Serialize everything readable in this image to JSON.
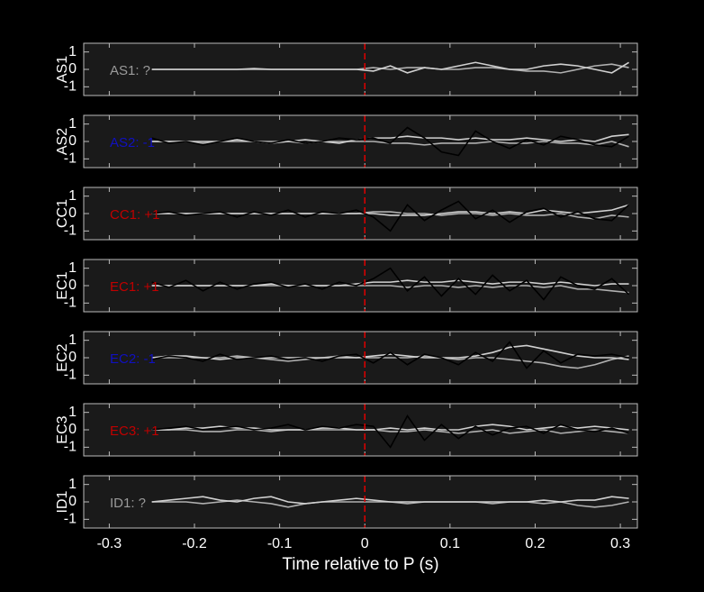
{
  "chart_data": [
    {
      "type": "line",
      "ylabel": "AS1",
      "annotation": "AS1: ?",
      "annotation_color": "#9a9a9a",
      "xlim": [
        -0.33,
        0.32
      ],
      "xticks": [
        -0.3,
        -0.2,
        -0.1,
        0,
        0.1,
        0.2,
        0.3
      ],
      "ylim": [
        -1.5,
        1.5
      ],
      "yticks": [
        -1,
        0,
        1
      ],
      "vline": 0,
      "vline_color": "#e00000",
      "x": [
        -0.25,
        -0.23,
        -0.21,
        -0.19,
        -0.17,
        -0.15,
        -0.13,
        -0.11,
        -0.09,
        -0.07,
        -0.05,
        -0.03,
        -0.01,
        0.01,
        0.03,
        0.05,
        0.07,
        0.09,
        0.11,
        0.13,
        0.15,
        0.17,
        0.19,
        0.21,
        0.23,
        0.25,
        0.27,
        0.29,
        0.31
      ],
      "series": [
        {
          "color": "#d0d0d0",
          "values": [
            0,
            0,
            0,
            0,
            0,
            0,
            0.05,
            0,
            0,
            0,
            0,
            0,
            0,
            -0.1,
            0.2,
            -0.2,
            0.1,
            0,
            0.2,
            0.4,
            0.2,
            0,
            0,
            0.2,
            0.3,
            0.2,
            0,
            -0.2,
            0.4
          ]
        },
        {
          "color": "#b0b0b0",
          "values": [
            0,
            0,
            0,
            0,
            0,
            0,
            0,
            0,
            0,
            0,
            0,
            0,
            0,
            0.1,
            0,
            0.1,
            0.1,
            0,
            0,
            0.1,
            0.1,
            0,
            -0.1,
            -0.1,
            -0.2,
            0,
            0.2,
            0.3,
            0.1
          ]
        }
      ]
    },
    {
      "type": "line",
      "ylabel": "AS2",
      "annotation": "AS2: -1",
      "annotation_color": "#1010c0",
      "xlim": [
        -0.33,
        0.32
      ],
      "xticks": [
        -0.3,
        -0.2,
        -0.1,
        0,
        0.1,
        0.2,
        0.3
      ],
      "ylim": [
        -1.5,
        1.5
      ],
      "yticks": [
        -1,
        0,
        1
      ],
      "vline": 0,
      "vline_color": "#e00000",
      "x": [
        -0.25,
        -0.23,
        -0.21,
        -0.19,
        -0.17,
        -0.15,
        -0.13,
        -0.11,
        -0.09,
        -0.07,
        -0.05,
        -0.03,
        -0.01,
        0.01,
        0.03,
        0.05,
        0.07,
        0.09,
        0.11,
        0.13,
        0.15,
        0.17,
        0.19,
        0.21,
        0.23,
        0.25,
        0.27,
        0.29,
        0.31
      ],
      "series": [
        {
          "color": "#000000",
          "values": [
            0.2,
            -0.1,
            0,
            -0.2,
            0,
            0.2,
            0,
            -0.1,
            0.1,
            -0.1,
            0,
            0.2,
            0.1,
            0.2,
            -0.1,
            0.8,
            0.2,
            -0.6,
            -0.8,
            0.6,
            0,
            -0.4,
            0.1,
            -0.2,
            0.3,
            0.1,
            -0.2,
            -0.3,
            0.3
          ]
        },
        {
          "color": "#d0d0d0",
          "values": [
            0,
            0,
            0,
            0,
            0,
            0.1,
            0,
            -0.1,
            0,
            0.1,
            0,
            -0.1,
            0.1,
            0.2,
            0.2,
            0.3,
            0.2,
            0.2,
            0.1,
            0.2,
            0.1,
            0.1,
            0.2,
            0.1,
            0,
            0.1,
            0,
            0.3,
            0.4
          ]
        },
        {
          "color": "#b0b0b0",
          "values": [
            0,
            0,
            0,
            -0.1,
            0,
            0,
            0,
            0,
            0,
            -0.1,
            0,
            0,
            0,
            0,
            -0.1,
            -0.1,
            -0.2,
            -0.1,
            -0.1,
            -0.1,
            0,
            -0.1,
            -0.1,
            0,
            -0.1,
            -0.1,
            -0.2,
            0,
            -0.3
          ]
        }
      ]
    },
    {
      "type": "line",
      "ylabel": "CC1",
      "annotation": "CC1: +1",
      "annotation_color": "#c00000",
      "xlim": [
        -0.33,
        0.32
      ],
      "xticks": [
        -0.3,
        -0.2,
        -0.1,
        0,
        0.1,
        0.2,
        0.3
      ],
      "ylim": [
        -1.5,
        1.5
      ],
      "yticks": [
        -1,
        0,
        1
      ],
      "vline": 0,
      "vline_color": "#e00000",
      "x": [
        -0.25,
        -0.23,
        -0.21,
        -0.19,
        -0.17,
        -0.15,
        -0.13,
        -0.11,
        -0.09,
        -0.07,
        -0.05,
        -0.03,
        -0.01,
        0.01,
        0.03,
        0.05,
        0.07,
        0.09,
        0.11,
        0.13,
        0.15,
        0.17,
        0.19,
        0.21,
        0.23,
        0.25,
        0.27,
        0.29,
        0.31
      ],
      "series": [
        {
          "color": "#000000",
          "values": [
            0,
            0.1,
            -0.1,
            0,
            0.1,
            -0.2,
            0.1,
            -0.1,
            0.2,
            -0.2,
            0.1,
            0,
            0.2,
            -0.2,
            -1.0,
            0.5,
            -0.4,
            0.2,
            0.7,
            -0.3,
            0.2,
            -0.5,
            0.1,
            0.3,
            -0.2,
            0.1,
            -0.3,
            -0.4,
            0.5
          ]
        },
        {
          "color": "#d0d0d0",
          "values": [
            0,
            0,
            0,
            0,
            0,
            0,
            0,
            0,
            0,
            0,
            0,
            0,
            0,
            0,
            -0.1,
            -0.1,
            -0.1,
            0,
            0.1,
            0.1,
            0,
            0.1,
            0,
            0.2,
            0.1,
            0,
            0.1,
            0.2,
            0.5
          ]
        },
        {
          "color": "#b0b0b0",
          "values": [
            0,
            0,
            0,
            0,
            0,
            0,
            0,
            0,
            0,
            0,
            0,
            0,
            0,
            0.1,
            0.1,
            0,
            0,
            -0.1,
            0,
            0,
            -0.1,
            0,
            -0.1,
            -0.1,
            0,
            -0.2,
            -0.3,
            -0.1,
            -0.2
          ]
        }
      ]
    },
    {
      "type": "line",
      "ylabel": "EC1",
      "annotation": "EC1: +1",
      "annotation_color": "#c00000",
      "xlim": [
        -0.33,
        0.32
      ],
      "xticks": [
        -0.3,
        -0.2,
        -0.1,
        0,
        0.1,
        0.2,
        0.3
      ],
      "ylim": [
        -1.5,
        1.5
      ],
      "yticks": [
        -1,
        0,
        1
      ],
      "vline": 0,
      "vline_color": "#e00000",
      "x": [
        -0.25,
        -0.23,
        -0.21,
        -0.19,
        -0.17,
        -0.15,
        -0.13,
        -0.11,
        -0.09,
        -0.07,
        -0.05,
        -0.03,
        -0.01,
        0.01,
        0.03,
        0.05,
        0.07,
        0.09,
        0.11,
        0.13,
        0.15,
        0.17,
        0.19,
        0.21,
        0.23,
        0.25,
        0.27,
        0.29,
        0.31
      ],
      "series": [
        {
          "color": "#000000",
          "values": [
            0.2,
            -0.1,
            0.3,
            -0.3,
            0.2,
            -0.2,
            0.1,
            0.2,
            -0.1,
            0.1,
            -0.2,
            0.2,
            0,
            0.4,
            1.0,
            -0.3,
            0.5,
            -0.6,
            0.4,
            -0.5,
            0.6,
            -0.3,
            0.3,
            -0.8,
            0.5,
            0,
            -0.2,
            0.4,
            -0.5
          ]
        },
        {
          "color": "#d0d0d0",
          "values": [
            0,
            0,
            0,
            0,
            0,
            0,
            0,
            0.1,
            0,
            0,
            0,
            0,
            0.1,
            0.2,
            0.2,
            0.3,
            0.2,
            0.2,
            0.3,
            0.2,
            0.1,
            0.2,
            0.2,
            0.1,
            0.2,
            0.1,
            0,
            0.1,
            0.1
          ]
        },
        {
          "color": "#b0b0b0",
          "values": [
            0,
            0,
            0,
            0,
            0,
            0,
            0,
            0,
            0,
            0,
            0,
            0,
            0,
            0,
            0,
            -0.1,
            0,
            0,
            -0.1,
            0,
            -0.1,
            0,
            0,
            -0.1,
            0,
            -0.2,
            -0.2,
            -0.3,
            -0.4
          ]
        }
      ]
    },
    {
      "type": "line",
      "ylabel": "EC2",
      "annotation": "EC2: -1",
      "annotation_color": "#1010c0",
      "xlim": [
        -0.33,
        0.32
      ],
      "xticks": [
        -0.3,
        -0.2,
        -0.1,
        0,
        0.1,
        0.2,
        0.3
      ],
      "ylim": [
        -1.5,
        1.5
      ],
      "yticks": [
        -1,
        0,
        1
      ],
      "vline": 0,
      "vline_color": "#e00000",
      "x": [
        -0.25,
        -0.23,
        -0.21,
        -0.19,
        -0.17,
        -0.15,
        -0.13,
        -0.11,
        -0.09,
        -0.07,
        -0.05,
        -0.03,
        -0.01,
        0.01,
        0.03,
        0.05,
        0.07,
        0.09,
        0.11,
        0.13,
        0.15,
        0.17,
        0.19,
        0.21,
        0.23,
        0.25,
        0.27,
        0.29,
        0.31
      ],
      "series": [
        {
          "color": "#000000",
          "values": [
            -0.1,
            0.1,
            0,
            -0.2,
            0.2,
            -0.1,
            0,
            0.1,
            -0.1,
            0,
            -0.2,
            0.1,
            0.2,
            -0.3,
            0.3,
            -0.4,
            0.2,
            0,
            -0.4,
            0.3,
            -0.2,
            0.9,
            -0.6,
            0.4,
            -0.3,
            0.2,
            0.1,
            0.2,
            0
          ]
        },
        {
          "color": "#d0d0d0",
          "values": [
            0,
            0.1,
            0.1,
            0,
            -0.1,
            0,
            0,
            0,
            0,
            0,
            0,
            0,
            0,
            0.1,
            0.2,
            0.1,
            0,
            0,
            0,
            0.1,
            0.3,
            0.6,
            0.7,
            0.5,
            0.3,
            0.1,
            0,
            0,
            -0.1
          ]
        },
        {
          "color": "#b0b0b0",
          "values": [
            0,
            0,
            0,
            0,
            0,
            0.1,
            0,
            -0.1,
            -0.2,
            -0.1,
            0,
            0.1,
            0,
            0,
            0,
            0,
            0.1,
            0,
            -0.1,
            0,
            0,
            -0.1,
            -0.2,
            -0.3,
            -0.5,
            -0.6,
            -0.4,
            -0.1,
            0.1
          ]
        }
      ]
    },
    {
      "type": "line",
      "ylabel": "EC3",
      "annotation": "EC3: +1",
      "annotation_color": "#c00000",
      "xlim": [
        -0.33,
        0.32
      ],
      "xticks": [
        -0.3,
        -0.2,
        -0.1,
        0,
        0.1,
        0.2,
        0.3
      ],
      "ylim": [
        -1.5,
        1.5
      ],
      "yticks": [
        -1,
        0,
        1
      ],
      "vline": 0,
      "vline_color": "#e00000",
      "x": [
        -0.25,
        -0.23,
        -0.21,
        -0.19,
        -0.17,
        -0.15,
        -0.13,
        -0.11,
        -0.09,
        -0.07,
        -0.05,
        -0.03,
        -0.01,
        0.01,
        0.03,
        0.05,
        0.07,
        0.09,
        0.11,
        0.13,
        0.15,
        0.17,
        0.19,
        0.21,
        0.23,
        0.25,
        0.27,
        0.29,
        0.31
      ],
      "series": [
        {
          "color": "#000000",
          "values": [
            0,
            0.1,
            0.2,
            0,
            0.1,
            0.2,
            0,
            0.1,
            0.3,
            0,
            0.2,
            0.1,
            0.3,
            0.2,
            -1.0,
            0.8,
            -0.6,
            0.3,
            -0.5,
            0.2,
            -0.3,
            0.1,
            0.2,
            -0.2,
            0.3,
            0,
            -0.1,
            0.1,
            -0.2
          ]
        },
        {
          "color": "#d0d0d0",
          "values": [
            0,
            0,
            0.1,
            0.1,
            0.2,
            0.1,
            0.1,
            0,
            0,
            0,
            0.1,
            0.1,
            0,
            0,
            0.1,
            0,
            0.1,
            0,
            0,
            0.2,
            0.3,
            0.2,
            0,
            0.1,
            0.2,
            0.1,
            0.2,
            0.1,
            0
          ]
        },
        {
          "color": "#b0b0b0",
          "values": [
            0,
            0,
            0,
            -0.1,
            -0.1,
            0,
            0,
            -0.1,
            0,
            0,
            0,
            0,
            0,
            0,
            -0.1,
            -0.1,
            0,
            -0.1,
            -0.2,
            -0.1,
            0,
            -0.2,
            -0.1,
            0,
            -0.2,
            -0.1,
            0,
            -0.1,
            -0.2
          ]
        }
      ]
    },
    {
      "type": "line",
      "ylabel": "ID1",
      "annotation": "ID1: ?",
      "annotation_color": "#9a9a9a",
      "xlabel": "Time relative to P (s)",
      "xlim": [
        -0.33,
        0.32
      ],
      "xticks": [
        -0.3,
        -0.2,
        -0.1,
        0,
        0.1,
        0.2,
        0.3
      ],
      "ylim": [
        -1.5,
        1.5
      ],
      "yticks": [
        -1,
        0,
        1
      ],
      "vline": 0,
      "vline_color": "#e00000",
      "x": [
        -0.25,
        -0.23,
        -0.21,
        -0.19,
        -0.17,
        -0.15,
        -0.13,
        -0.11,
        -0.09,
        -0.07,
        -0.05,
        -0.03,
        -0.01,
        0.01,
        0.03,
        0.05,
        0.07,
        0.09,
        0.11,
        0.13,
        0.15,
        0.17,
        0.19,
        0.21,
        0.23,
        0.25,
        0.27,
        0.29,
        0.31
      ],
      "series": [
        {
          "color": "#d0d0d0",
          "values": [
            0,
            0.1,
            0.2,
            0.3,
            0.1,
            0,
            0.2,
            0.3,
            0,
            -0.1,
            0,
            0.1,
            0.2,
            0.1,
            0,
            0,
            0,
            0,
            0,
            0,
            0,
            0,
            0,
            0.1,
            0,
            0.1,
            0.1,
            0.3,
            0.2
          ]
        },
        {
          "color": "#b0b0b0",
          "values": [
            0,
            0,
            0,
            -0.1,
            0,
            0.1,
            0,
            -0.1,
            -0.3,
            -0.1,
            0,
            0,
            0,
            0,
            0,
            -0.1,
            0,
            0,
            0,
            0,
            -0.1,
            0,
            0,
            -0.1,
            0,
            -0.2,
            -0.3,
            -0.2,
            0
          ]
        }
      ]
    }
  ]
}
